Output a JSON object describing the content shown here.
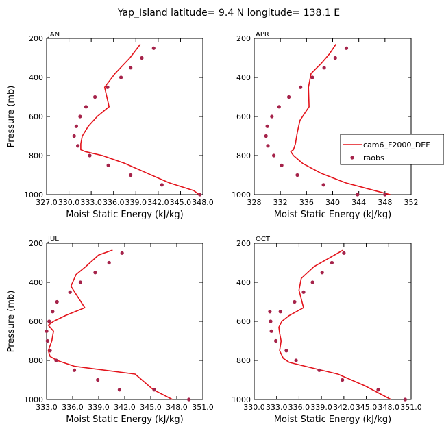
{
  "title": "Yap_Island   latitude= 9.4 N longitude= 138.1 E",
  "colors": {
    "model": "#e3131b",
    "obs": "#a5234a"
  },
  "legend": {
    "model_label": "cam6_F2000_DEF",
    "obs_label": "raobs"
  },
  "chart_data": [
    {
      "type": "line",
      "panel_label": "JAN",
      "xlabel": "Moist Static Energy (kJ/kg)",
      "ylabel": "Pressure (mb)",
      "xlim": [
        327.0,
        348.0
      ],
      "ylim": [
        1000,
        200
      ],
      "xticks": [
        327.0,
        330.0,
        333.0,
        336.0,
        339.0,
        342.0,
        345.0,
        348.0
      ],
      "xtick_labels": [
        "327.0",
        "330.0",
        "333.0",
        "336.0",
        "339.0",
        "342.0",
        "345.0",
        "348.0"
      ],
      "yticks": [
        200,
        400,
        600,
        800,
        1000
      ],
      "ytick_labels": [
        "200",
        "400",
        "600",
        "800",
        "1000"
      ],
      "series": [
        {
          "name": "cam6_F2000_DEF",
          "mode": "line",
          "x": [
            339.6,
            338.2,
            336.2,
            334.8,
            335.4,
            333.8,
            332.6,
            331.8,
            331.6,
            331.6,
            332.2,
            334.5,
            337.5,
            340.5,
            343.5,
            346.8,
            347.5
          ],
          "y": [
            230,
            300,
            380,
            450,
            550,
            600,
            650,
            700,
            740,
            770,
            780,
            800,
            840,
            890,
            940,
            980,
            1000
          ]
        },
        {
          "name": "raobs",
          "mode": "points",
          "x": [
            341.4,
            339.8,
            338.3,
            337.0,
            335.2,
            333.5,
            332.3,
            331.5,
            331.0,
            330.7,
            331.2,
            332.8,
            335.3,
            338.3,
            342.5,
            347.6
          ],
          "y": [
            250,
            300,
            350,
            400,
            450,
            500,
            550,
            600,
            650,
            700,
            750,
            800,
            850,
            900,
            950,
            1000
          ]
        }
      ]
    },
    {
      "type": "line",
      "panel_label": "APR",
      "xlabel": "Moist Static Energy (kJ/kg)",
      "ylabel": "",
      "xlim": [
        328.0,
        352.0
      ],
      "ylim": [
        1000,
        200
      ],
      "xticks": [
        328,
        332,
        336,
        340,
        344,
        348,
        352
      ],
      "xtick_labels": [
        "328",
        "332",
        "336",
        "340",
        "344",
        "348",
        "352"
      ],
      "yticks": [
        200,
        400,
        600,
        800,
        1000
      ],
      "ytick_labels": [
        "200",
        "400",
        "600",
        "800",
        "1000"
      ],
      "series": [
        {
          "name": "cam6_F2000_DEF",
          "mode": "line",
          "x": [
            340.5,
            339.5,
            338.2,
            336.7,
            336.3,
            336.4,
            335.0,
            334.6,
            334.3,
            334.0,
            333.6,
            334.0,
            335.4,
            338.2,
            342.0,
            346.5,
            348.8
          ],
          "y": [
            230,
            280,
            330,
            380,
            450,
            550,
            620,
            680,
            740,
            770,
            780,
            800,
            840,
            890,
            940,
            980,
            1000
          ]
        },
        {
          "name": "raobs",
          "mode": "points",
          "x": [
            342.1,
            340.4,
            338.7,
            336.9,
            335.1,
            333.3,
            331.8,
            330.7,
            330.0,
            329.8,
            330.1,
            331.0,
            332.2,
            334.6,
            338.6,
            343.8,
            348.0
          ],
          "y": [
            250,
            300,
            350,
            400,
            450,
            500,
            550,
            600,
            650,
            700,
            750,
            800,
            850,
            900,
            950,
            1000,
            1000
          ]
        }
      ]
    },
    {
      "type": "line",
      "panel_label": "JUL",
      "xlabel": "Moist Static Energy (kJ/kg)",
      "ylabel": "Pressure (mb)",
      "xlim": [
        333.0,
        351.0
      ],
      "ylim": [
        1000,
        200
      ],
      "xticks": [
        333.0,
        336.0,
        339.0,
        342.0,
        345.0,
        348.0,
        351.0
      ],
      "xtick_labels": [
        "333.0",
        "336.0",
        "339.0",
        "342.0",
        "345.0",
        "348.0",
        "351.0"
      ],
      "yticks": [
        200,
        400,
        600,
        800,
        1000
      ],
      "ytick_labels": [
        "200",
        "400",
        "600",
        "800",
        "1000"
      ],
      "series": [
        {
          "name": "cam6_F2000_DEF",
          "mode": "line",
          "x": [
            340.6,
            339.0,
            337.5,
            336.4,
            335.8,
            337.4,
            335.2,
            333.8,
            333.2,
            333.8,
            333.6,
            333.2,
            333.4,
            334.2,
            336.2,
            343.2,
            345.3,
            347.5
          ],
          "y": [
            235,
            260,
            320,
            360,
            420,
            530,
            570,
            600,
            620,
            650,
            700,
            750,
            780,
            800,
            830,
            870,
            950,
            1000
          ]
        },
        {
          "name": "raobs",
          "mode": "points",
          "x": [
            341.7,
            340.2,
            338.6,
            336.9,
            335.7,
            334.2,
            333.7,
            333.3,
            333.0,
            333.1,
            333.4,
            334.1,
            336.2,
            338.9,
            341.4,
            345.4,
            349.4
          ],
          "y": [
            250,
            300,
            350,
            400,
            450,
            500,
            550,
            600,
            650,
            700,
            750,
            800,
            850,
            900,
            950,
            950,
            1000
          ]
        }
      ]
    },
    {
      "type": "line",
      "panel_label": "OCT",
      "xlabel": "Moist Static Energy (kJ/kg)",
      "ylabel": "",
      "xlim": [
        330.0,
        351.0
      ],
      "ylim": [
        1000,
        200
      ],
      "xticks": [
        330.0,
        333.0,
        336.0,
        339.0,
        342.0,
        345.0,
        348.0,
        351.0
      ],
      "xtick_labels": [
        "330.0",
        "333.0",
        "336.0",
        "339.0",
        "342.0",
        "345.0",
        "348.0",
        "351.0"
      ],
      "yticks": [
        200,
        400,
        600,
        800,
        1000
      ],
      "ytick_labels": [
        "200",
        "400",
        "600",
        "800",
        "1000"
      ],
      "series": [
        {
          "name": "cam6_F2000_DEF",
          "mode": "line",
          "x": [
            341.9,
            340.3,
            338.0,
            336.3,
            336.0,
            336.6,
            334.7,
            333.7,
            333.3,
            333.4,
            333.6,
            333.4,
            333.9,
            334.7,
            336.8,
            341.2,
            344.8,
            348.3
          ],
          "y": [
            235,
            270,
            320,
            380,
            440,
            530,
            570,
            600,
            630,
            660,
            700,
            750,
            790,
            810,
            830,
            870,
            930,
            1000
          ]
        },
        {
          "name": "raobs",
          "mode": "points",
          "x": [
            342.0,
            340.4,
            339.1,
            337.8,
            336.6,
            335.4,
            333.5,
            332.1,
            332.2,
            332.3,
            332.9,
            334.3,
            335.6,
            338.7,
            341.8,
            346.6,
            350.2
          ],
          "y": [
            250,
            300,
            350,
            400,
            450,
            500,
            550,
            550,
            600,
            650,
            700,
            750,
            800,
            850,
            900,
            950,
            1000
          ]
        }
      ]
    }
  ]
}
